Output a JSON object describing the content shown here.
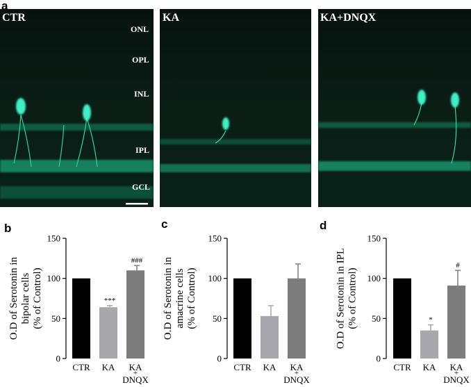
{
  "figure": {
    "panel_labels": [
      "a",
      "b",
      "c",
      "d"
    ]
  },
  "micrographs": {
    "panels": [
      {
        "title": "CTR",
        "layers": [
          "ONL",
          "OPL",
          "INL",
          "IPL",
          "GCL"
        ]
      },
      {
        "title": "KA"
      },
      {
        "title": "KA+DNQX"
      }
    ],
    "colors": {
      "background": "#061810",
      "stain": "#2ee8b0"
    }
  },
  "chart_data": [
    {
      "type": "bar",
      "categories": [
        "CTR",
        "KA",
        "KA\n+\nDNQX"
      ],
      "values": [
        100,
        64,
        110
      ],
      "errors": [
        0,
        2,
        6
      ],
      "annotations": [
        "",
        "***",
        "###"
      ],
      "ylabel": "O.D of Serotonin in\nbipolar cells\n(% of Control)",
      "ylim": [
        0,
        150
      ],
      "yticks": [
        0,
        50,
        100,
        150
      ],
      "bar_colors": [
        "#000000",
        "#a7a7ad",
        "#7d7d7d"
      ]
    },
    {
      "type": "bar",
      "categories": [
        "CTR",
        "KA",
        "KA\n+\nDNQX"
      ],
      "values": [
        100,
        53,
        100
      ],
      "errors": [
        0,
        13,
        18
      ],
      "annotations": [
        "",
        "",
        ""
      ],
      "ylabel": "O.D of Serotonin in\namacrine cells\n(% of Control)",
      "ylim": [
        0,
        150
      ],
      "yticks": [
        0,
        50,
        100,
        150
      ],
      "bar_colors": [
        "#000000",
        "#a7a7ad",
        "#7d7d7d"
      ]
    },
    {
      "type": "bar",
      "categories": [
        "CTR",
        "KA",
        "KA\n+\nDNQX"
      ],
      "values": [
        100,
        35,
        91
      ],
      "errors": [
        0,
        7,
        19
      ],
      "annotations": [
        "",
        "*",
        "#"
      ],
      "ylabel": "O.D of Serotonin in IPL\n(% of Control)",
      "ylim": [
        0,
        150
      ],
      "yticks": [
        0,
        50,
        100,
        150
      ],
      "bar_colors": [
        "#000000",
        "#a7a7ad",
        "#7d7d7d"
      ]
    }
  ]
}
